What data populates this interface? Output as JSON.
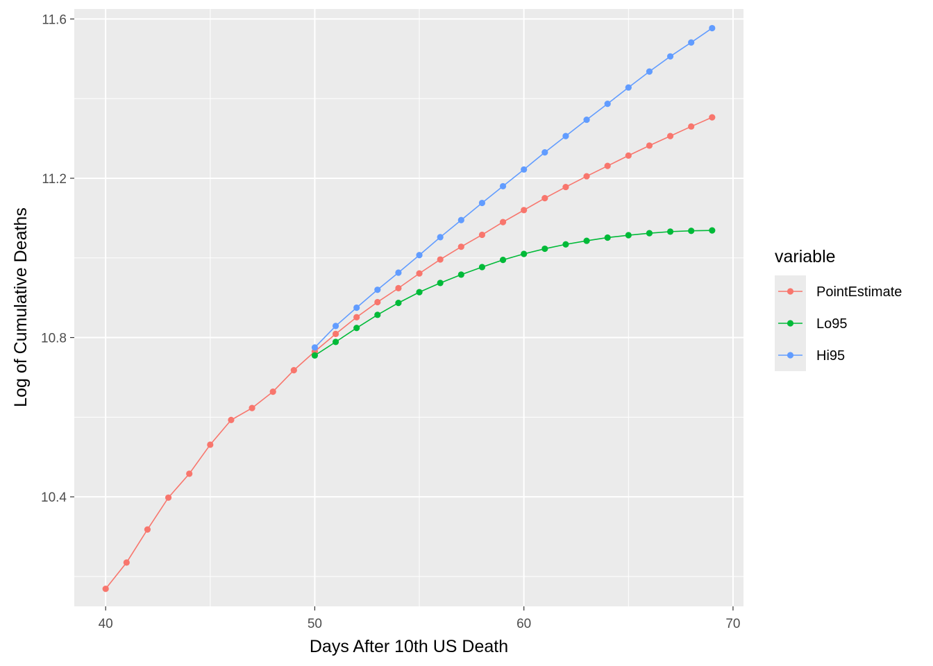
{
  "chart_data": {
    "type": "line",
    "title": "",
    "xlabel": "Days After 10th US Death",
    "ylabel": "Log of Cumulative Deaths",
    "xlim": [
      38.5,
      70.5
    ],
    "ylim": [
      10.125,
      11.625
    ],
    "x_ticks": [
      40,
      50,
      60,
      70
    ],
    "x_tick_labels": [
      "40",
      "50",
      "60",
      "70"
    ],
    "y_ticks": [
      10.4,
      10.8,
      11.2,
      11.6
    ],
    "y_tick_labels": [
      "10.4",
      "10.8",
      "11.2",
      "11.6"
    ],
    "grid": true,
    "legend": {
      "title": "variable",
      "position": "right"
    },
    "series": [
      {
        "name": "PointEstimate",
        "color": "#F8766D",
        "x": [
          40,
          41,
          42,
          43,
          44,
          45,
          46,
          47,
          48,
          49,
          50,
          51,
          52,
          53,
          54,
          55,
          56,
          57,
          58,
          59,
          60,
          61,
          62,
          63,
          64,
          65,
          66,
          67,
          68,
          69
        ],
        "y": [
          10.169,
          10.235,
          10.318,
          10.398,
          10.458,
          10.531,
          10.593,
          10.623,
          10.664,
          10.718,
          10.765,
          10.809,
          10.851,
          10.889,
          10.924,
          10.961,
          10.996,
          11.028,
          11.058,
          11.09,
          11.12,
          11.15,
          11.178,
          11.205,
          11.231,
          11.257,
          11.282,
          11.306,
          11.33,
          11.353
        ]
      },
      {
        "name": "Lo95",
        "color": "#00BA38",
        "x": [
          50,
          51,
          52,
          53,
          54,
          55,
          56,
          57,
          58,
          59,
          60,
          61,
          62,
          63,
          64,
          65,
          66,
          67,
          68,
          69
        ],
        "y": [
          10.755,
          10.789,
          10.824,
          10.857,
          10.887,
          10.914,
          10.937,
          10.958,
          10.977,
          10.995,
          11.01,
          11.023,
          11.034,
          11.043,
          11.051,
          11.057,
          11.062,
          11.066,
          11.068,
          11.069
        ]
      },
      {
        "name": "Hi95",
        "color": "#619CFF",
        "x": [
          50,
          51,
          52,
          53,
          54,
          55,
          56,
          57,
          58,
          59,
          60,
          61,
          62,
          63,
          64,
          65,
          66,
          67,
          68,
          69
        ],
        "y": [
          10.775,
          10.829,
          10.875,
          10.92,
          10.963,
          11.007,
          11.052,
          11.095,
          11.138,
          11.18,
          11.222,
          11.265,
          11.306,
          11.347,
          11.387,
          11.428,
          11.468,
          11.506,
          11.541,
          11.577
        ]
      }
    ]
  }
}
